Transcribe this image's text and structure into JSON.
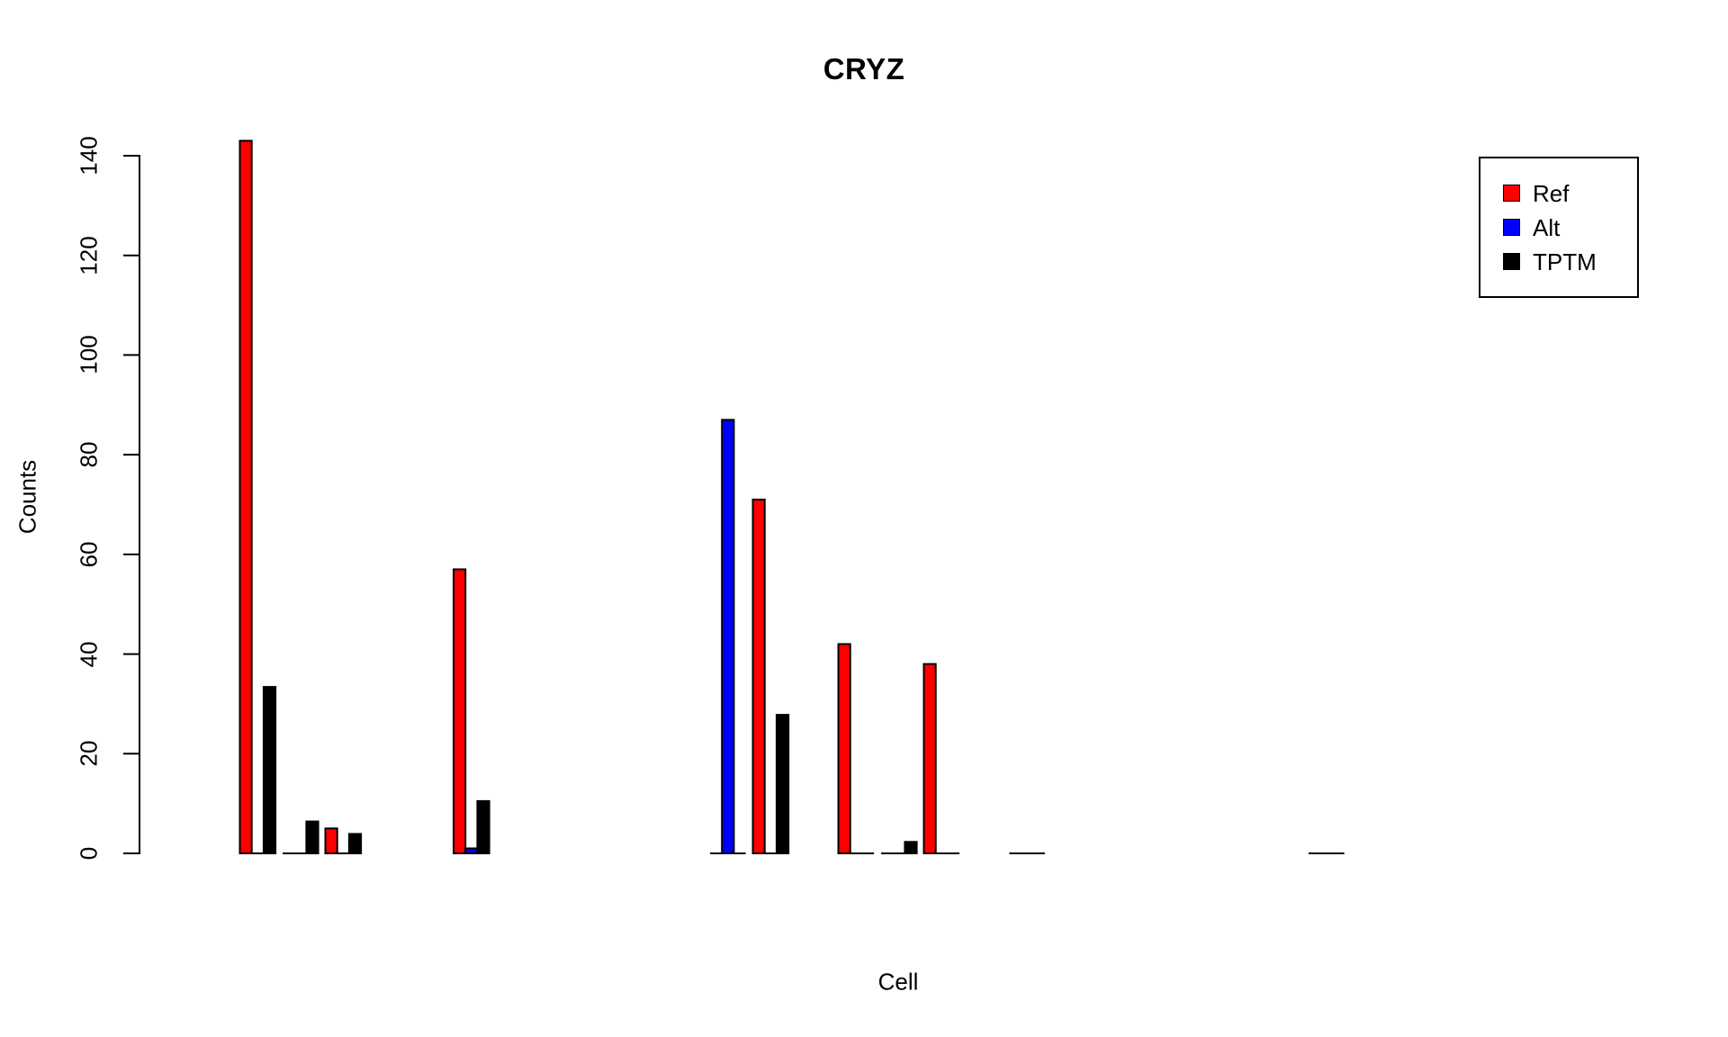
{
  "chart_data": {
    "type": "bar",
    "title": "CRYZ",
    "xlabel": "Cell",
    "ylabel": "Counts",
    "ylim": [
      0,
      145
    ],
    "yticks": [
      0,
      20,
      40,
      60,
      80,
      100,
      120,
      140
    ],
    "grid": false,
    "background": "#ffffff",
    "axis_color": "#000000",
    "legend_position": "top-right",
    "series_names": [
      "Ref",
      "Alt",
      "TPTM"
    ],
    "legend": {
      "entries": [
        {
          "label": "Ref",
          "color": "#FF0000"
        },
        {
          "label": "Alt",
          "color": "#0000FF"
        },
        {
          "label": "TPTM",
          "color": "#000000"
        }
      ]
    },
    "n_cell_slots": 26,
    "note": "cells without a drawn group are NA; zero values draw as baseline line segments",
    "groups": [
      {
        "cell_index": 1,
        "values": [
          143,
          0,
          33.4
        ]
      },
      {
        "cell_index": 2,
        "values": [
          0,
          0,
          6.4
        ]
      },
      {
        "cell_index": 3,
        "values": [
          5,
          0,
          3.9
        ]
      },
      {
        "cell_index": 6,
        "values": [
          57,
          1,
          10.5
        ]
      },
      {
        "cell_index": 12,
        "values": [
          0,
          87,
          0
        ]
      },
      {
        "cell_index": 13,
        "values": [
          71,
          0,
          27.8
        ]
      },
      {
        "cell_index": 15,
        "values": [
          42,
          0,
          0
        ]
      },
      {
        "cell_index": 16,
        "values": [
          0,
          0,
          2.3
        ]
      },
      {
        "cell_index": 17,
        "values": [
          38,
          0,
          0
        ]
      },
      {
        "cell_index": 19,
        "values": [
          0,
          0,
          0
        ]
      },
      {
        "cell_index": 26,
        "values": [
          0,
          0,
          0
        ]
      }
    ]
  }
}
